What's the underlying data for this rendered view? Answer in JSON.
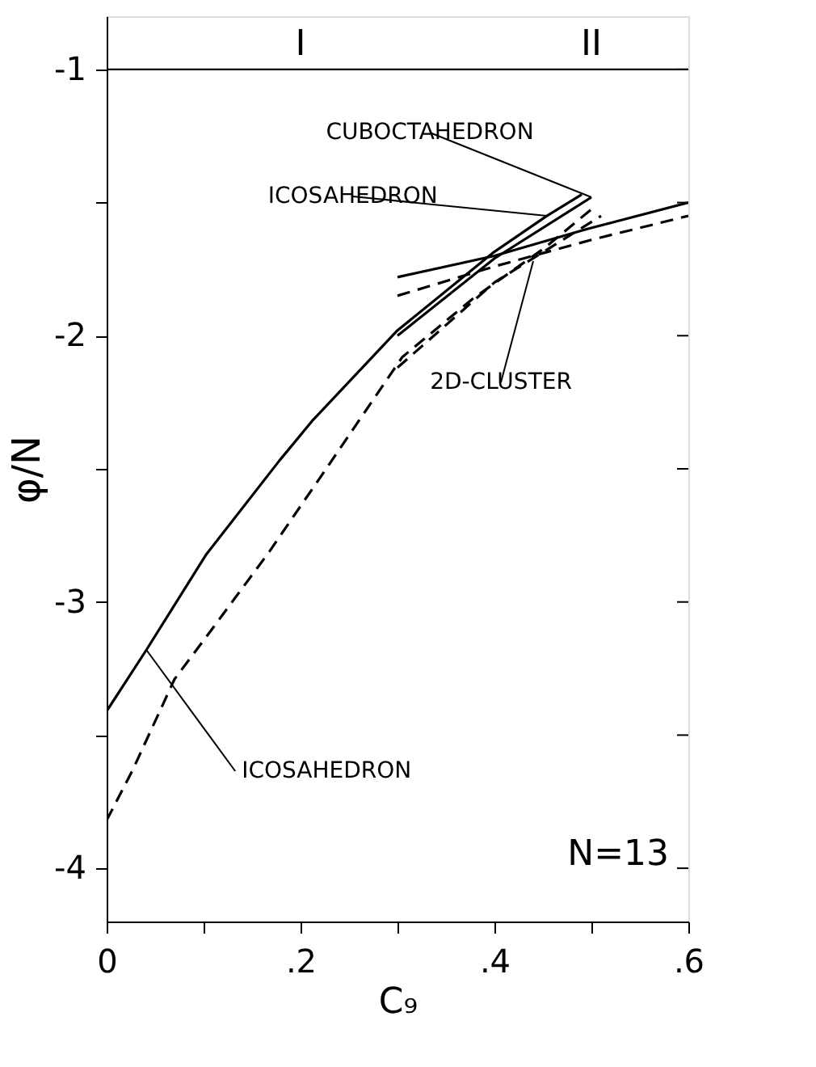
{
  "chart_data": {
    "type": "line",
    "xlabel": "C₉",
    "ylabel": "φ/N",
    "xlim": [
      0,
      0.6
    ],
    "ylim": [
      -4.2,
      -0.8
    ],
    "xticks": [
      0,
      {
        "value": 0.1,
        "label": null
      },
      {
        "value": 0.2,
        "label": ".2"
      },
      {
        "value": 0.3,
        "label": null
      },
      {
        "value": 0.4,
        "label": ".4"
      },
      {
        "value": 0.5,
        "label": null
      },
      {
        "value": 0.6,
        "label": ".6"
      }
    ],
    "yticks": [
      -4,
      {
        "value": -3.5,
        "label": null
      },
      -3,
      {
        "value": -2.5,
        "label": null
      },
      -2,
      {
        "value": -1.5,
        "label": null
      },
      -1
    ],
    "grid": false,
    "marker": "none",
    "series": [
      {
        "color": "#000000",
        "line_style": "solid",
        "x": [
          0,
          0.041,
          0.103,
          0.178,
          0.212,
          0.3,
          0.398,
          0.454,
          0.49
        ],
        "values": [
          -3.41,
          -3.18,
          -2.82,
          -2.47,
          -2.32,
          -1.98,
          -1.69,
          -1.55,
          -1.47
        ]
      },
      {
        "color": "#000000",
        "line_style": "solid",
        "x": [
          0.3,
          0.4,
          0.5
        ],
        "values": [
          -2.0,
          -1.71,
          -1.48
        ]
      },
      {
        "color": "#000000",
        "line_style": "solid",
        "x": [
          0.3,
          0.4,
          0.495,
          0.6
        ],
        "values": [
          -1.78,
          -1.7,
          -1.6,
          -1.5
        ]
      },
      {
        "color": "#000000",
        "line_style": "dashed",
        "x": [
          0,
          0.027,
          0.07,
          0.105,
          0.168,
          0.232,
          0.305,
          0.378,
          0.452,
          0.505
        ],
        "values": [
          -3.82,
          -3.63,
          -3.29,
          -3.12,
          -2.81,
          -2.47,
          -2.08,
          -1.86,
          -1.67,
          -1.51
        ]
      },
      {
        "color": "#000000",
        "line_style": "dashed",
        "x": [
          0.3,
          0.4,
          0.51
        ],
        "values": [
          -2.12,
          -1.8,
          -1.55
        ]
      },
      {
        "color": "#000000",
        "line_style": "dashed",
        "x": [
          0.3,
          0.4,
          0.5,
          0.6
        ],
        "values": [
          -1.85,
          -1.74,
          -1.64,
          -1.55
        ]
      }
    ],
    "ref_lines": [
      {
        "axis": "y",
        "value": -1,
        "label": null,
        "color": "#000000"
      }
    ],
    "annotations": [
      {
        "text": "I",
        "x": 0.2,
        "y": -1
      },
      {
        "text": "II",
        "x": 0.5,
        "y": -1
      },
      {
        "text": "CUBOCTAHEDRON",
        "x": 0.5,
        "y": -1.48
      },
      {
        "text": "ICOSAHEDRON",
        "x": 0.454,
        "y": -1.55
      },
      {
        "text": "2D-CLUSTER",
        "x": 0.44,
        "y": -1.72
      },
      {
        "text": "ICOSAHEDRON",
        "x": 0.041,
        "y": -3.18
      },
      "N=13"
    ]
  }
}
